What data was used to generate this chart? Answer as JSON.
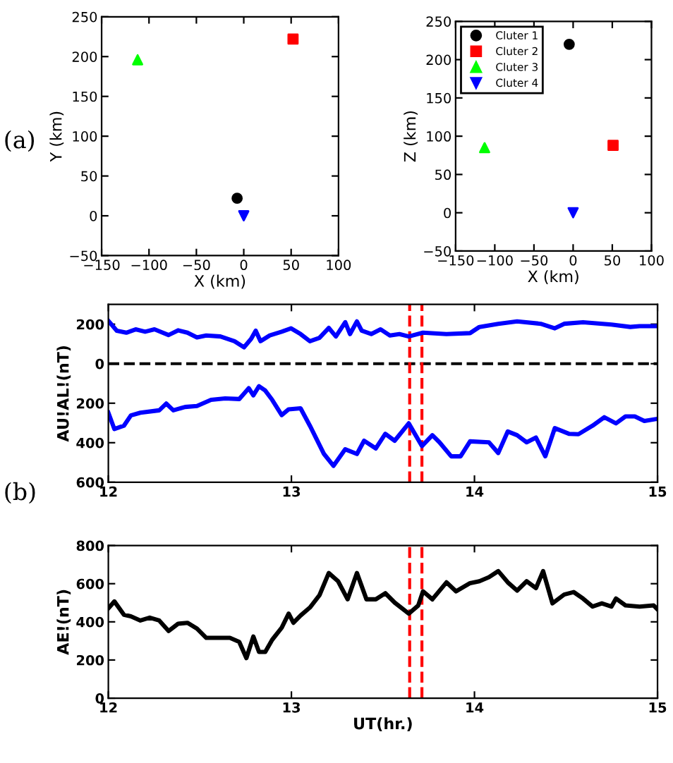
{
  "chart_data": [
    {
      "type": "scatter",
      "xlabel": "X (km)",
      "ylabel": "Y (km)",
      "xlim": [
        -150,
        100
      ],
      "ylim": [
        -50,
        250
      ],
      "xticks": [
        {
          "value": -150,
          "label": "−150"
        },
        {
          "value": -100,
          "label": "−100"
        },
        {
          "value": -50,
          "label": "−50"
        },
        0,
        50,
        100
      ],
      "yticks": [
        {
          "value": -50,
          "label": "−50"
        },
        0,
        50,
        100,
        150,
        200,
        250
      ],
      "grid": false,
      "legend": false,
      "annotations": [
        "(a)"
      ],
      "series": [
        {
          "color": "#000000",
          "marker": "circle",
          "x": [
            -7
          ],
          "values": [
            22
          ]
        },
        {
          "color": "#ff0000",
          "marker": "square",
          "x": [
            52
          ],
          "values": [
            222
          ]
        },
        {
          "color": "#00ff00",
          "marker": "triangle",
          "x": [
            -112
          ],
          "values": [
            196
          ]
        },
        {
          "color": "#0000ff",
          "marker": "triangle_down",
          "x": [
            0
          ],
          "values": [
            0
          ]
        }
      ]
    },
    {
      "type": "scatter",
      "xlabel": "X (km)",
      "ylabel": "Z (km)",
      "xlim": [
        -150,
        100
      ],
      "ylim": [
        -50,
        250
      ],
      "xticks": [
        {
          "value": -150,
          "label": "−150"
        },
        {
          "value": -100,
          "label": "−100"
        },
        {
          "value": -50,
          "label": "−50"
        },
        0,
        50,
        100
      ],
      "yticks": [
        {
          "value": -50,
          "label": "−50"
        },
        0,
        50,
        100,
        150,
        200,
        250
      ],
      "grid": false,
      "legend": "top left",
      "series": [
        {
          "name": "Cluter 1",
          "color": "#000000",
          "marker": "circle",
          "x": [
            -5
          ],
          "values": [
            220
          ]
        },
        {
          "name": "Cluter 2",
          "color": "#ff0000",
          "marker": "square",
          "x": [
            51
          ],
          "values": [
            88
          ]
        },
        {
          "name": "Cluter 3",
          "color": "#00ff00",
          "marker": "triangle",
          "x": [
            -113
          ],
          "values": [
            85
          ]
        },
        {
          "name": "Cluter 4",
          "color": "#0000ff",
          "marker": "triangle_down",
          "x": [
            0
          ],
          "values": [
            0
          ]
        }
      ]
    },
    {
      "type": "line",
      "ylabel": "AU!AL!(nT)",
      "xlim": [
        12,
        15
      ],
      "ylim": [
        -600,
        300
      ],
      "xticks": [
        12,
        13,
        14,
        15
      ],
      "yticks": [
        {
          "value": -600,
          "label": "600"
        },
        {
          "value": -400,
          "label": "400"
        },
        {
          "value": -200,
          "label": "200"
        },
        0,
        200
      ],
      "grid": false,
      "legend": false,
      "annotations": [
        "(b)"
      ],
      "ref_lines": [
        {
          "axis": "y",
          "value": 0,
          "color": "#000000",
          "line_style": "dashed"
        },
        {
          "axis": "x",
          "value": 13.646,
          "color": "#ff0000",
          "line_style": "dashed"
        },
        {
          "axis": "x",
          "value": 13.713,
          "color": "#ff0000",
          "line_style": "dashed"
        }
      ],
      "series": [
        {
          "color": "#0000ff",
          "x": [
            12.0,
            12.046,
            12.098,
            12.149,
            12.201,
            12.252,
            12.329,
            12.381,
            12.432,
            12.484,
            12.535,
            12.612,
            12.689,
            12.741,
            12.78,
            12.805,
            12.831,
            12.882,
            12.947,
            12.998,
            13.05,
            13.101,
            13.153,
            13.204,
            13.243,
            13.294,
            13.32,
            13.358,
            13.384,
            13.436,
            13.487,
            13.538,
            13.59,
            13.641,
            13.719,
            13.847,
            13.976,
            14.027,
            14.13,
            14.233,
            14.362,
            14.439,
            14.49,
            14.593,
            14.748,
            14.851,
            14.902,
            15.0
          ],
          "values": [
            217,
            167,
            157,
            174,
            162,
            174,
            145,
            169,
            157,
            133,
            143,
            138,
            114,
            83,
            126,
            167,
            114,
            143,
            162,
            179,
            150,
            114,
            131,
            181,
            138,
            210,
            150,
            214,
            167,
            150,
            174,
            143,
            150,
            138,
            157,
            150,
            155,
            186,
            202,
            214,
            202,
            179,
            202,
            210,
            198,
            186,
            190,
            190
          ]
        },
        {
          "color": "#0000ff",
          "x": [
            12.0,
            12.033,
            12.085,
            12.123,
            12.175,
            12.278,
            12.316,
            12.355,
            12.419,
            12.484,
            12.561,
            12.638,
            12.715,
            12.741,
            12.767,
            12.792,
            12.823,
            12.857,
            12.895,
            12.947,
            12.985,
            13.05,
            13.101,
            13.178,
            13.23,
            13.294,
            13.358,
            13.397,
            13.461,
            13.513,
            13.564,
            13.641,
            13.713,
            13.77,
            13.809,
            13.873,
            13.924,
            13.976,
            14.079,
            14.13,
            14.182,
            14.233,
            14.285,
            14.336,
            14.387,
            14.439,
            14.516,
            14.568,
            14.645,
            14.709,
            14.773,
            14.825,
            14.876,
            14.928,
            15.0
          ],
          "values": [
            -248,
            -331,
            -314,
            -262,
            -248,
            -236,
            -202,
            -236,
            -219,
            -214,
            -183,
            -176,
            -179,
            -152,
            -124,
            -160,
            -114,
            -136,
            -183,
            -260,
            -231,
            -226,
            -314,
            -457,
            -517,
            -433,
            -457,
            -390,
            -429,
            -355,
            -390,
            -302,
            -417,
            -362,
            -398,
            -469,
            -469,
            -393,
            -398,
            -452,
            -343,
            -362,
            -398,
            -374,
            -469,
            -326,
            -355,
            -357,
            -314,
            -271,
            -302,
            -267,
            -267,
            -290,
            -279
          ]
        }
      ]
    },
    {
      "type": "line",
      "xlabel": "UT(hr.)",
      "ylabel": "AE!(nT)",
      "xlim": [
        12,
        15
      ],
      "ylim": [
        0,
        800
      ],
      "xticks": [
        12,
        13,
        14,
        15
      ],
      "yticks": [
        0,
        200,
        400,
        600,
        800
      ],
      "grid": false,
      "legend": false,
      "ref_lines": [
        {
          "axis": "x",
          "value": 13.646,
          "color": "#ff0000",
          "line_style": "dashed"
        },
        {
          "axis": "x",
          "value": 13.713,
          "color": "#ff0000",
          "line_style": "dashed"
        }
      ],
      "series": [
        {
          "color": "#000000",
          "x": [
            12.0,
            12.033,
            12.085,
            12.123,
            12.175,
            12.226,
            12.278,
            12.329,
            12.381,
            12.432,
            12.484,
            12.535,
            12.587,
            12.664,
            12.715,
            12.754,
            12.792,
            12.823,
            12.857,
            12.895,
            12.947,
            12.985,
            13.011,
            13.05,
            13.101,
            13.153,
            13.204,
            13.255,
            13.307,
            13.358,
            13.41,
            13.461,
            13.513,
            13.564,
            13.641,
            13.693,
            13.719,
            13.77,
            13.847,
            13.899,
            13.976,
            14.027,
            14.079,
            14.13,
            14.182,
            14.233,
            14.285,
            14.336,
            14.375,
            14.426,
            14.49,
            14.542,
            14.593,
            14.645,
            14.696,
            14.748,
            14.773,
            14.825,
            14.902,
            14.979,
            15.0
          ],
          "values": [
            471,
            507,
            437,
            429,
            407,
            422,
            407,
            352,
            390,
            395,
            365,
            316,
            316,
            316,
            295,
            210,
            323,
            242,
            242,
            306,
            369,
            443,
            395,
            433,
            475,
            539,
            656,
            613,
            518,
            656,
            518,
            518,
            550,
            501,
            443,
            486,
            560,
            518,
            607,
            560,
            603,
            613,
            634,
            666,
            607,
            564,
            613,
            577,
            666,
            497,
            543,
            556,
            522,
            480,
            497,
            480,
            522,
            486,
            480,
            486,
            465
          ]
        }
      ]
    }
  ]
}
